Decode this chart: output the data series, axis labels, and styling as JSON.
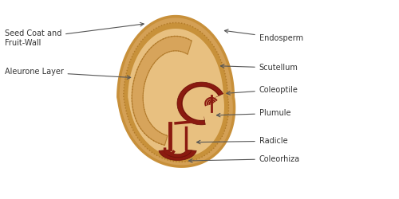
{
  "background_color": "#ffffff",
  "seed_outer_fill": "#d4a055",
  "seed_outer_edge": "#c8903a",
  "aleurone_fill": "#c8913a",
  "aleurone_edge": "#b07828",
  "endosperm_fill": "#e8c080",
  "scutellum_fill": "#d4a055",
  "scutellum_edge": "#b07828",
  "embryo_red": "#8b1a10",
  "embryo_dark": "#6a0f08",
  "embryo_fill": "#c04030",
  "text_color": "#333333",
  "arrow_color": "#555555",
  "labels": {
    "seed_coat": "Seed Coat and\nFruit-Wall",
    "aleurone": "Aleurone Layer",
    "endosperm": "Endosperm",
    "scutellum": "Scutellum",
    "coleoptile": "Coleoptile",
    "plumule": "Plumule",
    "radicle": "Radicle",
    "coleorhiza": "Coleorhiza"
  },
  "figsize": [
    5.0,
    2.5
  ],
  "dpi": 100
}
